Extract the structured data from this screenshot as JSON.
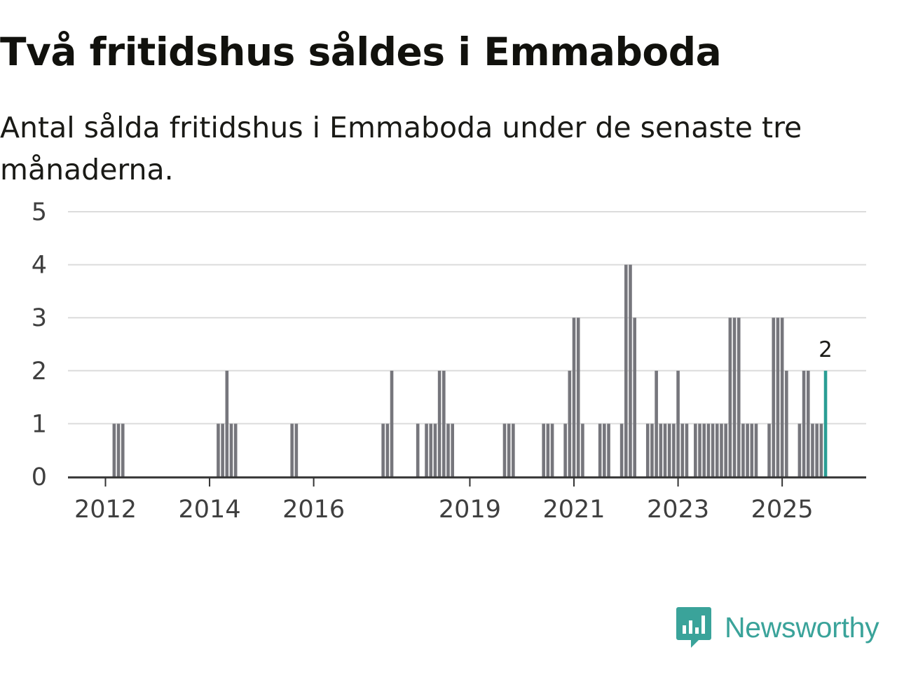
{
  "title": "Två fritidshus såldes i Emmaboda",
  "subtitle": "Antal sålda fritidshus i Emmaboda under de senaste tre månaderna.",
  "brand": {
    "name": "Newsworthy",
    "icon": "newsworthy-logo-icon",
    "color": "#3aa39a"
  },
  "colors": {
    "bar": "#76767c",
    "highlight": "#2a9d94",
    "grid": "#dcdcdc",
    "axis": "#333333"
  },
  "chart_data": {
    "type": "bar",
    "title": "Två fritidshus såldes i Emmaboda",
    "subtitle": "Antal sålda fritidshus i Emmaboda under de senaste tre månaderna.",
    "xlabel": "",
    "ylabel": "",
    "ylim": [
      0,
      5
    ],
    "yticks": [
      "0",
      "1",
      "2",
      "3",
      "4",
      "5"
    ],
    "xticks": [
      {
        "label": "2012",
        "year": 2012
      },
      {
        "label": "2014",
        "year": 2014
      },
      {
        "label": "2016",
        "year": 2016
      },
      {
        "label": "2019",
        "year": 2019
      },
      {
        "label": "2021",
        "year": 2021
      },
      {
        "label": "2023",
        "year": 2023
      },
      {
        "label": "2025",
        "year": 2025
      }
    ],
    "period": "rolling three months, monthly",
    "start": "2011-06",
    "end": "2025-11",
    "nonzero_values": [
      {
        "month": "2012-03",
        "value": 1
      },
      {
        "month": "2012-04",
        "value": 1
      },
      {
        "month": "2012-05",
        "value": 1
      },
      {
        "month": "2014-03",
        "value": 1
      },
      {
        "month": "2014-04",
        "value": 1
      },
      {
        "month": "2014-05",
        "value": 2
      },
      {
        "month": "2014-06",
        "value": 1
      },
      {
        "month": "2014-07",
        "value": 1
      },
      {
        "month": "2015-08",
        "value": 1
      },
      {
        "month": "2015-09",
        "value": 1
      },
      {
        "month": "2017-05",
        "value": 1
      },
      {
        "month": "2017-06",
        "value": 1
      },
      {
        "month": "2017-07",
        "value": 2
      },
      {
        "month": "2018-01",
        "value": 1
      },
      {
        "month": "2018-03",
        "value": 1
      },
      {
        "month": "2018-04",
        "value": 1
      },
      {
        "month": "2018-05",
        "value": 1
      },
      {
        "month": "2018-06",
        "value": 2
      },
      {
        "month": "2018-07",
        "value": 2
      },
      {
        "month": "2018-08",
        "value": 1
      },
      {
        "month": "2018-09",
        "value": 1
      },
      {
        "month": "2019-09",
        "value": 1
      },
      {
        "month": "2019-10",
        "value": 1
      },
      {
        "month": "2019-11",
        "value": 1
      },
      {
        "month": "2020-06",
        "value": 1
      },
      {
        "month": "2020-07",
        "value": 1
      },
      {
        "month": "2020-08",
        "value": 1
      },
      {
        "month": "2020-11",
        "value": 1
      },
      {
        "month": "2020-12",
        "value": 2
      },
      {
        "month": "2021-01",
        "value": 3
      },
      {
        "month": "2021-02",
        "value": 3
      },
      {
        "month": "2021-03",
        "value": 1
      },
      {
        "month": "2021-07",
        "value": 1
      },
      {
        "month": "2021-08",
        "value": 1
      },
      {
        "month": "2021-09",
        "value": 1
      },
      {
        "month": "2021-12",
        "value": 1
      },
      {
        "month": "2022-01",
        "value": 4
      },
      {
        "month": "2022-02",
        "value": 4
      },
      {
        "month": "2022-03",
        "value": 3
      },
      {
        "month": "2022-06",
        "value": 1
      },
      {
        "month": "2022-07",
        "value": 1
      },
      {
        "month": "2022-08",
        "value": 2
      },
      {
        "month": "2022-09",
        "value": 1
      },
      {
        "month": "2022-10",
        "value": 1
      },
      {
        "month": "2022-11",
        "value": 1
      },
      {
        "month": "2022-12",
        "value": 1
      },
      {
        "month": "2023-01",
        "value": 2
      },
      {
        "month": "2023-02",
        "value": 1
      },
      {
        "month": "2023-03",
        "value": 1
      },
      {
        "month": "2023-05",
        "value": 1
      },
      {
        "month": "2023-06",
        "value": 1
      },
      {
        "month": "2023-07",
        "value": 1
      },
      {
        "month": "2023-08",
        "value": 1
      },
      {
        "month": "2023-09",
        "value": 1
      },
      {
        "month": "2023-10",
        "value": 1
      },
      {
        "month": "2023-11",
        "value": 1
      },
      {
        "month": "2023-12",
        "value": 1
      },
      {
        "month": "2024-01",
        "value": 3
      },
      {
        "month": "2024-02",
        "value": 3
      },
      {
        "month": "2024-03",
        "value": 3
      },
      {
        "month": "2024-04",
        "value": 1
      },
      {
        "month": "2024-05",
        "value": 1
      },
      {
        "month": "2024-06",
        "value": 1
      },
      {
        "month": "2024-07",
        "value": 1
      },
      {
        "month": "2024-10",
        "value": 1
      },
      {
        "month": "2024-11",
        "value": 3
      },
      {
        "month": "2024-12",
        "value": 3
      },
      {
        "month": "2025-01",
        "value": 3
      },
      {
        "month": "2025-02",
        "value": 2
      },
      {
        "month": "2025-05",
        "value": 1
      },
      {
        "month": "2025-06",
        "value": 2
      },
      {
        "month": "2025-07",
        "value": 2
      },
      {
        "month": "2025-08",
        "value": 1
      },
      {
        "month": "2025-09",
        "value": 1
      },
      {
        "month": "2025-10",
        "value": 1
      },
      {
        "month": "2025-11",
        "value": 2
      }
    ],
    "highlight": {
      "month": "2025-11",
      "value": 2,
      "label": "2"
    }
  }
}
